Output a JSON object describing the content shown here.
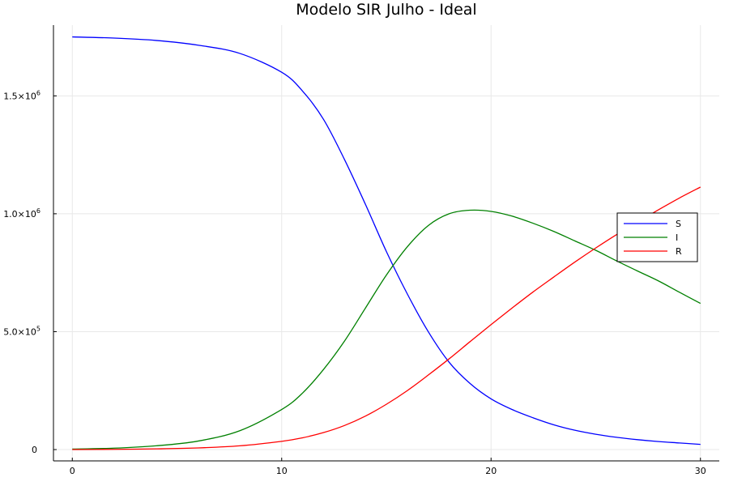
{
  "chart_data": {
    "type": "line",
    "title": "Modelo SIR Julho - Ideal",
    "xlabel": "",
    "ylabel": "",
    "xlim": [
      -0.9,
      30.9
    ],
    "ylim": [
      -48000,
      1800000
    ],
    "xticks": [
      0,
      10,
      20,
      30
    ],
    "xtick_labels": [
      "0",
      "10",
      "20",
      "30"
    ],
    "yticks": [
      0,
      500000,
      1000000,
      1500000
    ],
    "ytick_labels": [
      {
        "base": "0",
        "exp": ""
      },
      {
        "base": "5.0×10",
        "exp": "5"
      },
      {
        "base": "1.0×10",
        "exp": "6"
      },
      {
        "base": "1.5×10",
        "exp": "6"
      }
    ],
    "grid": true,
    "legend_position": "right",
    "x": [
      0,
      2,
      4,
      6,
      8,
      10,
      11,
      12,
      13,
      14,
      15,
      16,
      17,
      18,
      19,
      20,
      21,
      22,
      23,
      24,
      25,
      26,
      27,
      28,
      29,
      30
    ],
    "series": [
      {
        "name": "S",
        "color": "#0000ff",
        "values": [
          1750000,
          1745000,
          1735000,
          1715000,
          1680000,
          1600000,
          1520000,
          1400000,
          1230000,
          1040000,
          840000,
          660000,
          500000,
          370000,
          280000,
          215000,
          170000,
          135000,
          105000,
          82000,
          65000,
          52000,
          42000,
          34000,
          28000,
          22000
        ]
      },
      {
        "name": "I",
        "color": "#008000",
        "values": [
          2000,
          6000,
          16000,
          36000,
          80000,
          170000,
          240000,
          340000,
          460000,
          600000,
          740000,
          860000,
          950000,
          1000000,
          1015000,
          1010000,
          990000,
          960000,
          925000,
          885000,
          845000,
          800000,
          757000,
          715000,
          667000,
          620000
        ]
      },
      {
        "name": "R",
        "color": "#ff0000",
        "values": [
          0,
          1000,
          3000,
          7000,
          16000,
          35000,
          50000,
          72000,
          102000,
          142000,
          192000,
          250000,
          316000,
          385000,
          458000,
          530000,
          600000,
          668000,
          732000,
          795000,
          855000,
          912000,
          965000,
          1017000,
          1067000,
          1113000
        ]
      }
    ]
  }
}
